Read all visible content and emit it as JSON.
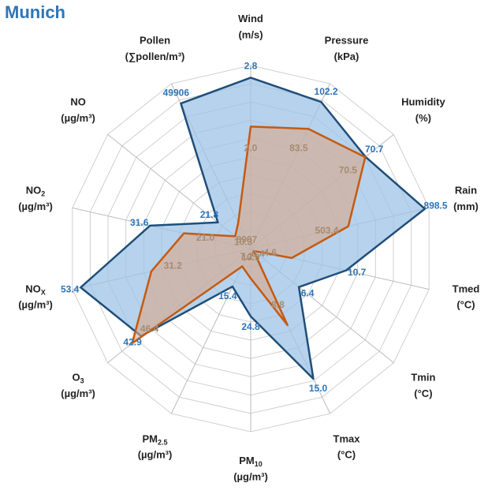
{
  "chart_data": {
    "type": "radar",
    "title": "Munich",
    "axes": [
      {
        "label": "Wind",
        "unit": "(m/s)",
        "max": 3
      },
      {
        "label": "Pressure",
        "unit": "(kPa)",
        "max": 115
      },
      {
        "label": "Humidity",
        "unit": "(%)",
        "max": 88
      },
      {
        "label": "Rain",
        "unit": "(mm)",
        "max": 920
      },
      {
        "label": "Tmed",
        "unit": "(°C)",
        "max": 20
      },
      {
        "label": "Tmin",
        "unit": "(°C)",
        "max": 19
      },
      {
        "label": "Tmax",
        "unit": "(°C)",
        "max": 19
      },
      {
        "label": "PM",
        "sub": "10",
        "unit": "(µg/m³)",
        "max": 67
      },
      {
        "label": "PM",
        "sub": "2.5",
        "unit": "(µg/m³)",
        "max": 67
      },
      {
        "label": "O",
        "sub": "3",
        "unit": "(µg/m³)",
        "max": 56
      },
      {
        "label": "NO",
        "sub": "X",
        "unit": "(µg/m³)",
        "max": 56
      },
      {
        "label": "NO",
        "sub": "2",
        "unit": "(µg/m³)",
        "max": 56
      },
      {
        "label": "NO",
        "unit": "(µg/m³)",
        "max": 95
      },
      {
        "label": "Pollen",
        "unit": "(∑pollen/m³)",
        "max": 56700
      }
    ],
    "series": [
      {
        "color": "#1f4e79",
        "fill": "#9dc3e6",
        "label_color": "#2e75b6",
        "values": [
          2.8,
          102.2,
          70.7,
          898.5,
          10.7,
          6.4,
          15.0,
          24.8,
          15.4,
          42.9,
          53.4,
          31.6,
          21.8,
          49906
        ],
        "value_labels": [
          "2.8",
          "102.2",
          "70.7",
          "898.5",
          "10.7",
          "6.4",
          "15.0",
          "24.8",
          "15.4",
          "42.9",
          "53.4",
          "31.6",
          "21.8",
          "49906"
        ]
      },
      {
        "color": "#c55a11",
        "fill": "#d9a88a",
        "label_color": "#a88a70",
        "values": [
          2.0,
          83.5,
          70.5,
          503.4,
          4.6,
          0.4,
          8.8,
          10.9,
          7.2,
          46.4,
          31.2,
          21.0,
          10.3,
          8907
        ],
        "value_labels": [
          "2.0",
          "83.5",
          "70.5",
          "503.4",
          "4.6",
          "0.4",
          "8.8",
          "10.9",
          "7.2",
          "46.4",
          "31.2",
          "21.0",
          "10.3",
          "8907"
        ]
      }
    ],
    "rings": 10
  }
}
